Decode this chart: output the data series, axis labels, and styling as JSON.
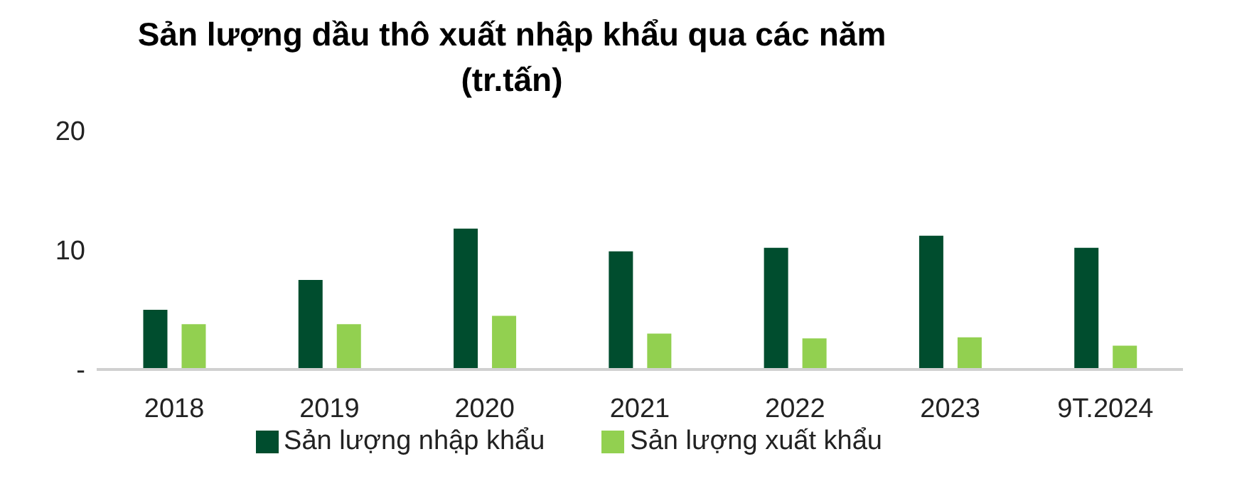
{
  "chart_data": {
    "type": "bar",
    "title": "Sản lượng dầu thô xuất nhập khẩu qua các năm",
    "subtitle": "(tr.tấn)",
    "categories": [
      "2018",
      "2019",
      "2020",
      "2021",
      "2022",
      "2023",
      "9T.2024"
    ],
    "series": [
      {
        "name": "Sản lượng nhập khẩu",
        "color": "#004d2e",
        "values": [
          5.0,
          7.5,
          11.8,
          9.9,
          10.2,
          11.2,
          10.2
        ]
      },
      {
        "name": "Sản lượng xuất khẩu",
        "color": "#92d050",
        "values": [
          3.8,
          3.8,
          4.5,
          3.0,
          2.6,
          2.7,
          2.0
        ]
      }
    ],
    "ylim": [
      0,
      20
    ],
    "yticks": [
      {
        "value": 0,
        "label": "-"
      },
      10,
      20
    ],
    "grid": false,
    "legend": "bottom"
  }
}
